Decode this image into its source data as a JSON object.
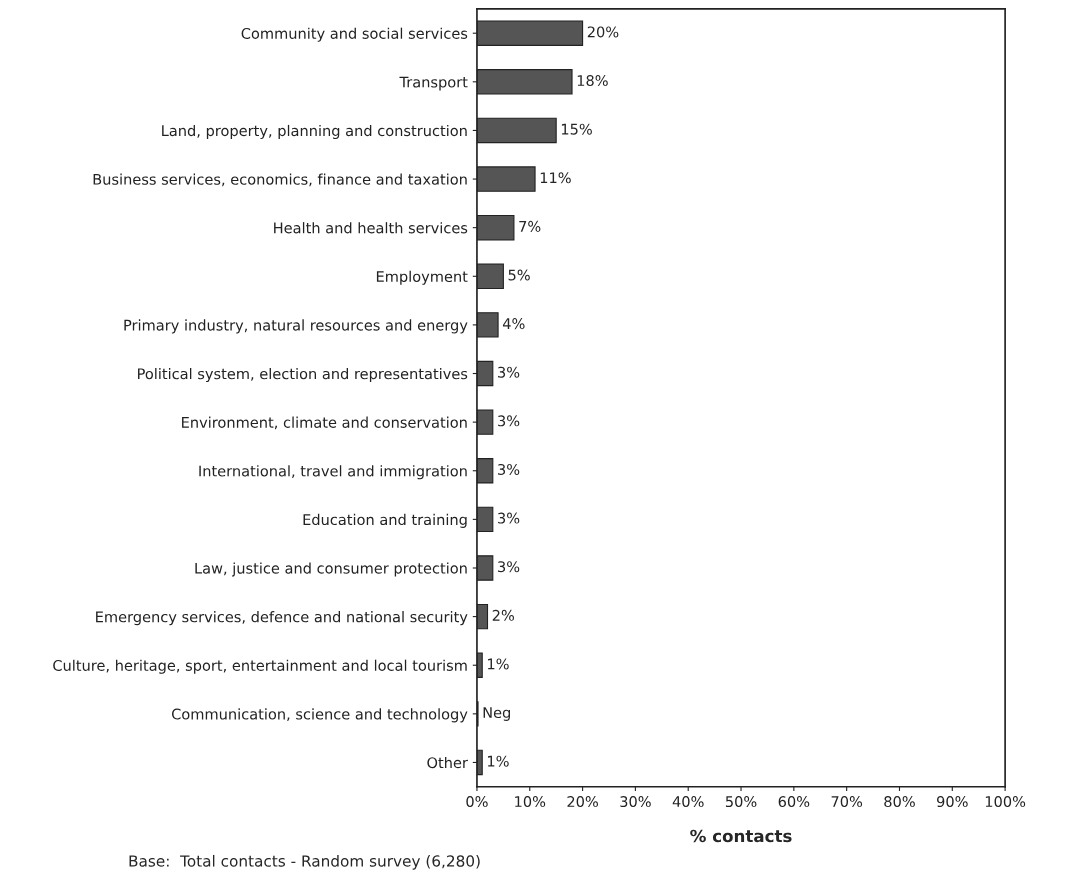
{
  "chart_data": {
    "type": "bar",
    "orientation": "horizontal",
    "categories": [
      "Community and social services",
      "Transport",
      "Land, property, planning and construction",
      "Business services, economics, finance and taxation",
      "Health and health services",
      "Employment",
      "Primary industry, natural resources and energy",
      "Political system, election and representatives",
      "Environment, climate and conservation",
      "International, travel and immigration",
      "Education and training",
      "Law, justice and consumer protection",
      "Emergency services, defence and national security",
      "Culture, heritage, sport, entertainment and local tourism",
      "Communication, science and technology",
      "Other"
    ],
    "values": [
      20,
      18,
      15,
      11,
      7,
      5,
      4,
      3,
      3,
      3,
      3,
      3,
      2,
      1,
      0.2,
      1
    ],
    "value_labels": [
      "20%",
      "18%",
      "15%",
      "11%",
      "7%",
      "5%",
      "4%",
      "3%",
      "3%",
      "3%",
      "3%",
      "3%",
      "2%",
      "1%",
      "Neg",
      "1%"
    ],
    "color": "#555555",
    "xlim": [
      0,
      100
    ],
    "xticks": [
      {
        "value": 0,
        "label": "0%"
      },
      {
        "value": 10,
        "label": "10%"
      },
      {
        "value": 20,
        "label": "20%"
      },
      {
        "value": 30,
        "label": "30%"
      },
      {
        "value": 40,
        "label": "40%"
      },
      {
        "value": 50,
        "label": "50%"
      },
      {
        "value": 60,
        "label": "60%"
      },
      {
        "value": 70,
        "label": "70%"
      },
      {
        "value": 80,
        "label": "80%"
      },
      {
        "value": 90,
        "label": "90%"
      },
      {
        "value": 100,
        "label": "100%"
      }
    ],
    "xlabel": "% contacts",
    "annotations": [
      "Base:  Total contacts - Random survey (6,280)"
    ],
    "grid": false
  }
}
